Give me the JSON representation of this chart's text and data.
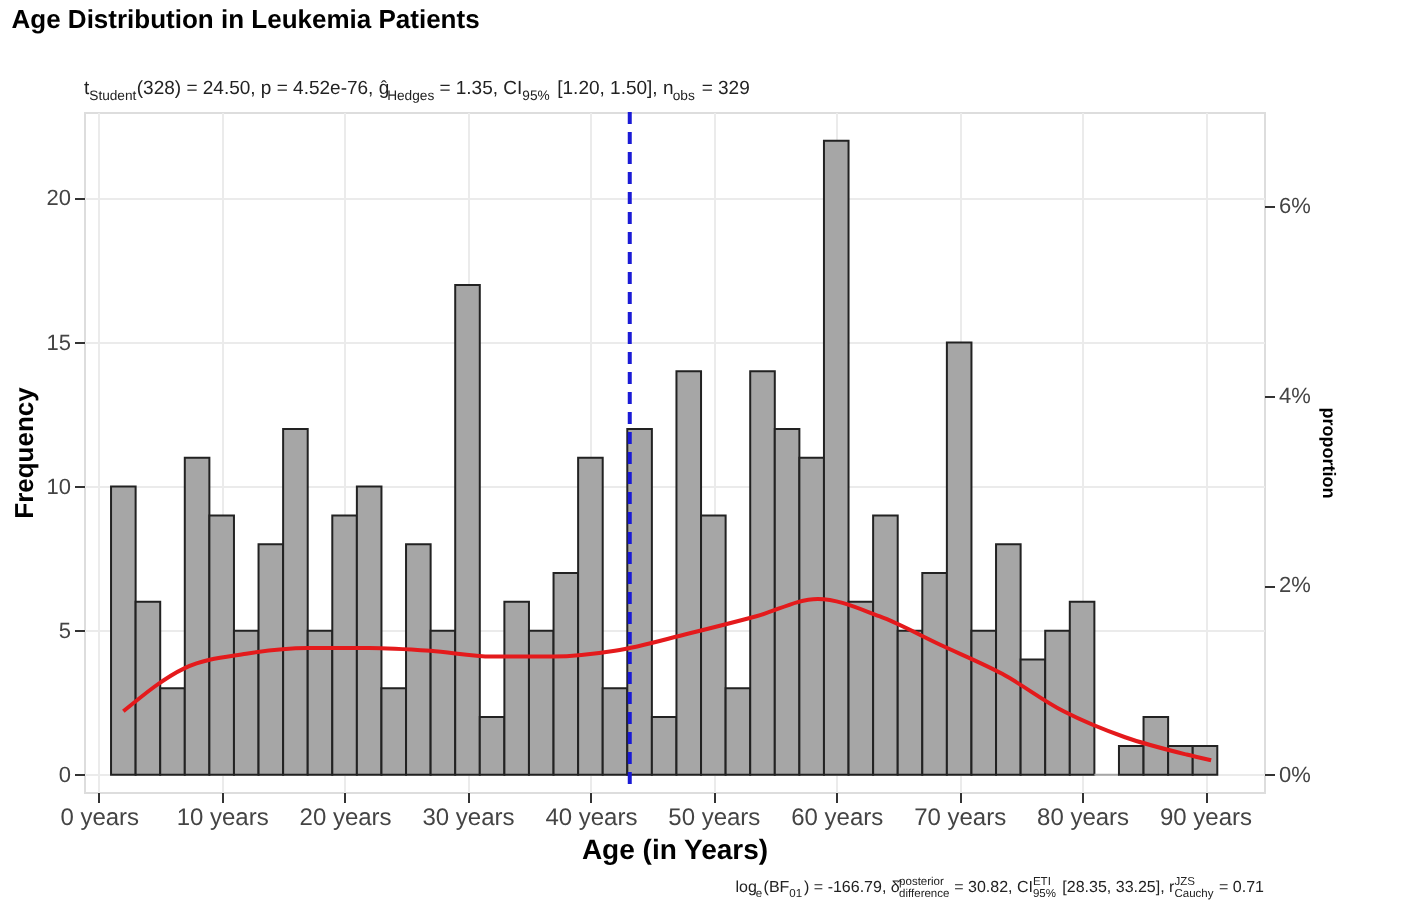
{
  "chart_data": {
    "type": "histogram",
    "title": "Age Distribution in Leukemia Patients",
    "subtitle": "t$_{Student}$(328) = 24.50, p = 4.52e-76, ĝ$_{Hedges}$ = 1.35, CI$_{95%}$ [1.20, 1.50], n$_{obs}$ = 329",
    "xlabel": "Age (in Years)",
    "ylabel": "Frequency",
    "y2label": "proportion",
    "annotations": [
      "log$_{e}$(BF$_{01}$) = -166.79, δ̂$^{posterior}$$_{difference}$ = 30.82, CI$^{ETI}$$_{95%}$ [28.35, 33.25], r$^{JZS}$$_{Cauchy}$ = 0.71"
    ],
    "bins": [
      1,
      3,
      5,
      7,
      9,
      11,
      13,
      15,
      17,
      19,
      21,
      23,
      25,
      27,
      29,
      31,
      33,
      35,
      37,
      39,
      41,
      43,
      45,
      47,
      49,
      51,
      53,
      55,
      57,
      59,
      61,
      63,
      65,
      67,
      69,
      71,
      73,
      75,
      77,
      79,
      81,
      83,
      85,
      87,
      89,
      91
    ],
    "values": [
      10,
      6,
      3,
      11,
      9,
      5,
      8,
      12,
      5,
      9,
      10,
      3,
      8,
      5,
      17,
      2,
      6,
      5,
      7,
      11,
      3,
      12,
      2,
      14,
      9,
      3,
      14,
      12,
      11,
      22,
      6,
      9,
      5,
      7,
      15,
      5,
      8,
      4,
      5,
      6,
      0,
      1,
      2,
      1,
      1
    ],
    "color": "#a6a6a6",
    "series": [
      {
        "type": "line",
        "color": "#e41a1c",
        "x": [
          2,
          7,
          12,
          17,
          22,
          27,
          32,
          37,
          42,
          48,
          53.5,
          58.5,
          63.5,
          68.5,
          73.5,
          78.5,
          83.5,
          88.5,
          90.5
        ],
        "values": [
          2.2,
          3.7,
          4.2,
          4.4,
          4.4,
          4.3,
          4.1,
          4.1,
          4.3,
          4.9,
          5.5,
          6.1,
          5.5,
          4.5,
          3.5,
          2.2,
          1.3,
          0.7,
          0.5
        ]
      }
    ],
    "ref_lines": [
      {
        "axis": "x",
        "value": 43.2,
        "color": "#1a1ad6",
        "line_style": "dashed"
      }
    ],
    "xlim": [
      -1.2,
      94.8
    ],
    "xticks": [
      {
        "value": 0,
        "label": "0 years"
      },
      {
        "value": 10,
        "label": "10 years"
      },
      {
        "value": 20,
        "label": "20 years"
      },
      {
        "value": 30,
        "label": "30 years"
      },
      {
        "value": 40,
        "label": "40 years"
      },
      {
        "value": 50,
        "label": "50 years"
      },
      {
        "value": 60,
        "label": "60 years"
      },
      {
        "value": 70,
        "label": "70 years"
      },
      {
        "value": 80,
        "label": "80 years"
      },
      {
        "value": 90,
        "label": "90 years"
      }
    ],
    "ylim": [
      -0.6,
      23
    ],
    "yticks": [
      0,
      5,
      10,
      15,
      20
    ],
    "y2lim": [
      -0.18,
      6.99
    ],
    "y2ticks": [
      {
        "value": 0,
        "label": "0%"
      },
      {
        "value": 2,
        "label": "2%"
      },
      {
        "value": 4,
        "label": "4%"
      },
      {
        "value": 6,
        "label": "6%"
      }
    ],
    "grid": true
  }
}
